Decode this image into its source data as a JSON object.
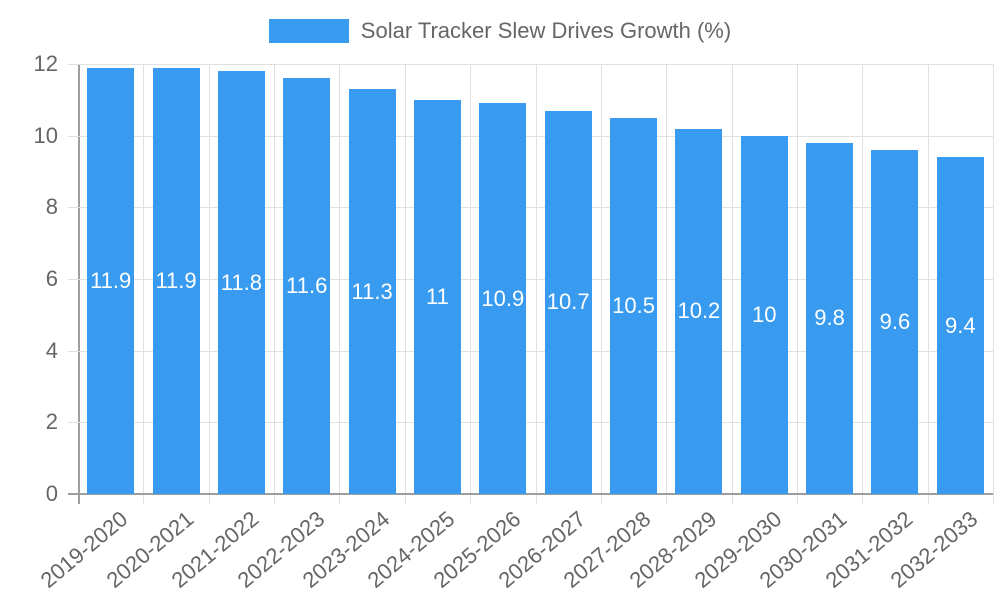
{
  "legend": {
    "label": "Solar Tracker Slew Drives Growth (%)",
    "color": "#389BF0"
  },
  "y_ticks": [
    "12",
    "10",
    "8",
    "6",
    "4",
    "2",
    "0"
  ],
  "chart_data": {
    "type": "bar",
    "title": "",
    "xlabel": "",
    "ylabel": "",
    "ylim": [
      0,
      12
    ],
    "grid": true,
    "legend_position": "top",
    "categories": [
      "2019-2020",
      "2020-2021",
      "2021-2022",
      "2022-2023",
      "2023-2024",
      "2024-2025",
      "2025-2026",
      "2026-2027",
      "2027-2028",
      "2028-2029",
      "2029-2030",
      "2030-2031",
      "2031-2032",
      "2032-2033"
    ],
    "series": [
      {
        "name": "Solar Tracker Slew Drives Growth (%)",
        "color": "#389BF0",
        "values": [
          11.9,
          11.9,
          11.8,
          11.6,
          11.3,
          11,
          10.9,
          10.7,
          10.5,
          10.2,
          10,
          9.8,
          9.6,
          9.4
        ]
      }
    ]
  }
}
